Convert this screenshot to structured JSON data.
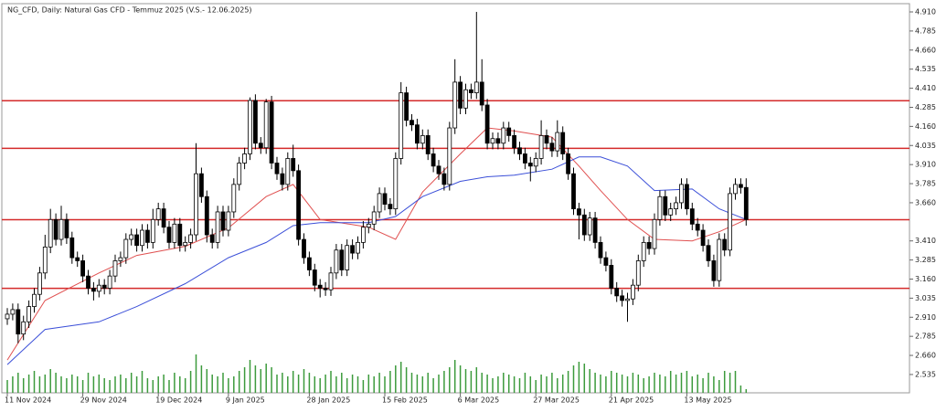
{
  "chart_data": {
    "type": "candlestick",
    "title": "NG_CFD, Daily:  Natural Gas CFD - Temmuz 2025 (V.S.- 12.06.2025)",
    "categories": [
      "11 Nov 2024",
      null,
      null,
      null,
      null,
      null,
      null,
      null,
      null,
      null,
      null,
      null,
      null,
      null,
      "29 Nov 2024",
      null,
      null,
      null,
      null,
      null,
      null,
      null,
      null,
      null,
      null,
      null,
      null,
      null,
      "19 Dec 2024",
      null,
      null,
      null,
      null,
      null,
      null,
      null,
      null,
      null,
      null,
      null,
      null,
      "9 Jan 2025",
      null,
      null,
      null,
      null,
      null,
      null,
      null,
      null,
      null,
      null,
      null,
      null,
      null,
      null,
      "28 Jan 2025",
      null,
      null,
      null,
      null,
      null,
      null,
      null,
      null,
      null,
      null,
      null,
      null,
      null,
      "15 Feb 2025",
      null,
      null,
      null,
      null,
      null,
      null,
      null,
      null,
      null,
      null,
      null,
      null,
      null,
      "6 Mar 2025",
      null,
      null,
      null,
      null,
      null,
      null,
      null,
      null,
      null,
      null,
      null,
      null,
      null,
      "27 Mar 2025",
      null,
      null,
      null,
      null,
      null,
      null,
      null,
      null,
      null,
      null,
      null,
      null,
      null,
      "21 Apr 2025",
      null,
      null,
      null,
      null,
      null,
      null,
      null,
      null,
      null,
      null,
      null,
      null,
      null,
      "13 May 2025",
      null,
      null,
      null,
      null,
      null,
      null,
      null,
      null,
      null,
      null,
      null
    ],
    "open": [
      2.9,
      2.93,
      2.96,
      2.8,
      2.88,
      2.98,
      3.06,
      3.2,
      3.37,
      3.55,
      3.42,
      3.55,
      3.43,
      3.3,
      3.28,
      3.18,
      3.1,
      3.08,
      3.12,
      3.1,
      3.18,
      3.28,
      3.3,
      3.42,
      3.45,
      3.38,
      3.48,
      3.4,
      3.55,
      3.62,
      3.5,
      3.4,
      3.52,
      3.38,
      3.4,
      3.45,
      3.85,
      3.7,
      3.45,
      3.4,
      3.6,
      3.48,
      3.6,
      3.78,
      3.92,
      3.98,
      4.33,
      4.05,
      4.02,
      4.32,
      3.92,
      3.85,
      3.78,
      3.95,
      3.87,
      3.42,
      3.3,
      3.22,
      3.12,
      3.1,
      3.09,
      3.2,
      3.35,
      3.22,
      3.38,
      3.33,
      3.4,
      3.5,
      3.52,
      3.6,
      3.72,
      3.65,
      3.62,
      3.95,
      4.38,
      4.2,
      4.17,
      4.05,
      4.1,
      3.98,
      3.9,
      3.85,
      3.78,
      4.15,
      4.45,
      4.28,
      4.4,
      4.38,
      4.45,
      4.3,
      4.05,
      4.08,
      4.05,
      4.15,
      4.1,
      4.02,
      3.98,
      3.92,
      3.9,
      3.95,
      4.1,
      4.05,
      4.0,
      4.12,
      3.98,
      3.85,
      3.62,
      3.58,
      3.45,
      3.56,
      3.4,
      3.3,
      3.25,
      3.1,
      3.05,
      3.02,
      3.03,
      3.12,
      3.28,
      3.4,
      3.36,
      3.55,
      3.7,
      3.58,
      3.62,
      3.66,
      3.78,
      3.62,
      3.52,
      3.48,
      3.38,
      3.28,
      3.15,
      3.42,
      3.35,
      3.72,
      3.78,
      3.76
    ],
    "high": [
      2.97,
      3.0,
      3.0,
      2.92,
      3.02,
      3.1,
      3.24,
      3.45,
      3.62,
      3.59,
      3.64,
      3.59,
      3.47,
      3.34,
      3.32,
      3.22,
      3.14,
      3.16,
      3.16,
      3.22,
      3.32,
      3.34,
      3.46,
      3.49,
      3.49,
      3.52,
      3.52,
      3.62,
      3.66,
      3.66,
      3.54,
      3.56,
      3.56,
      3.44,
      3.49,
      4.05,
      3.89,
      3.74,
      3.49,
      3.64,
      3.64,
      3.64,
      3.82,
      3.96,
      4.02,
      4.35,
      4.37,
      4.09,
      4.34,
      4.36,
      3.96,
      3.89,
      3.99,
      4.04,
      3.91,
      3.46,
      3.34,
      3.26,
      3.16,
      3.14,
      3.24,
      3.39,
      3.39,
      3.42,
      3.42,
      3.44,
      3.54,
      3.56,
      3.64,
      3.76,
      3.76,
      3.69,
      3.99,
      4.45,
      4.42,
      4.24,
      4.21,
      4.14,
      4.14,
      4.02,
      3.94,
      3.89,
      4.19,
      4.6,
      4.49,
      4.44,
      4.44,
      4.91,
      4.6,
      4.34,
      4.12,
      4.12,
      4.19,
      4.19,
      4.14,
      4.06,
      4.02,
      3.96,
      3.99,
      4.2,
      4.14,
      4.09,
      4.2,
      4.16,
      4.02,
      3.89,
      3.66,
      3.62,
      3.6,
      3.6,
      3.44,
      3.34,
      3.29,
      3.14,
      3.09,
      3.07,
      3.16,
      3.32,
      3.44,
      3.44,
      3.59,
      3.74,
      3.74,
      3.66,
      3.7,
      3.82,
      3.82,
      3.66,
      3.56,
      3.52,
      3.42,
      3.32,
      3.46,
      3.46,
      3.76,
      3.82,
      3.82,
      3.82
    ],
    "low": [
      2.86,
      2.89,
      2.74,
      2.76,
      2.84,
      2.94,
      3.02,
      3.16,
      3.33,
      3.38,
      3.38,
      3.39,
      3.26,
      3.24,
      3.14,
      3.06,
      3.02,
      3.04,
      3.06,
      3.06,
      3.14,
      3.24,
      3.26,
      3.38,
      3.34,
      3.34,
      3.36,
      3.36,
      3.51,
      3.46,
      3.36,
      3.36,
      3.34,
      3.34,
      3.36,
      3.41,
      3.66,
      3.4,
      3.36,
      3.36,
      3.44,
      3.44,
      3.56,
      3.74,
      3.88,
      3.94,
      4.01,
      3.98,
      3.98,
      3.88,
      3.81,
      3.74,
      3.74,
      3.83,
      3.38,
      3.26,
      3.18,
      3.08,
      3.04,
      3.05,
      3.05,
      3.16,
      3.18,
      3.18,
      3.29,
      3.29,
      3.36,
      3.46,
      3.48,
      3.56,
      3.61,
      3.58,
      3.58,
      3.91,
      4.16,
      4.13,
      4.01,
      4.01,
      3.94,
      3.86,
      3.81,
      3.74,
      3.74,
      4.11,
      4.24,
      4.24,
      4.34,
      4.34,
      4.26,
      4.01,
      4.01,
      4.01,
      4.01,
      4.06,
      3.98,
      3.94,
      3.88,
      3.8,
      3.86,
      3.91,
      4.01,
      3.96,
      3.96,
      3.94,
      3.81,
      3.58,
      3.42,
      3.41,
      3.41,
      3.36,
      3.26,
      3.21,
      3.06,
      3.01,
      2.98,
      2.88,
      2.99,
      3.08,
      3.24,
      3.32,
      3.32,
      3.51,
      3.54,
      3.54,
      3.58,
      3.62,
      3.58,
      3.48,
      3.44,
      3.34,
      3.24,
      3.11,
      3.11,
      3.31,
      3.31,
      3.68,
      3.72,
      3.51
    ],
    "close": [
      2.93,
      2.96,
      2.8,
      2.88,
      2.98,
      3.06,
      3.2,
      3.37,
      3.55,
      3.42,
      3.55,
      3.43,
      3.3,
      3.28,
      3.18,
      3.1,
      3.08,
      3.12,
      3.1,
      3.18,
      3.28,
      3.3,
      3.42,
      3.45,
      3.38,
      3.48,
      3.4,
      3.55,
      3.62,
      3.5,
      3.4,
      3.52,
      3.38,
      3.4,
      3.45,
      3.85,
      3.7,
      3.45,
      3.4,
      3.6,
      3.48,
      3.6,
      3.78,
      3.92,
      3.98,
      4.33,
      4.05,
      4.02,
      4.32,
      3.92,
      3.85,
      3.78,
      3.95,
      3.87,
      3.42,
      3.3,
      3.22,
      3.12,
      3.1,
      3.09,
      3.2,
      3.35,
      3.22,
      3.38,
      3.33,
      3.4,
      3.5,
      3.52,
      3.6,
      3.72,
      3.65,
      3.62,
      3.95,
      4.38,
      4.2,
      4.17,
      4.05,
      4.1,
      3.98,
      3.9,
      3.85,
      3.78,
      4.15,
      4.45,
      4.28,
      4.4,
      4.38,
      4.45,
      4.3,
      4.05,
      4.08,
      4.05,
      4.15,
      4.1,
      4.02,
      3.98,
      3.92,
      3.9,
      3.95,
      4.1,
      4.05,
      4.0,
      4.12,
      3.98,
      3.85,
      3.62,
      3.58,
      3.45,
      3.56,
      3.4,
      3.3,
      3.25,
      3.1,
      3.05,
      3.02,
      3.03,
      3.12,
      3.28,
      3.4,
      3.36,
      3.55,
      3.7,
      3.58,
      3.62,
      3.66,
      3.78,
      3.62,
      3.52,
      3.48,
      3.38,
      3.28,
      3.15,
      3.42,
      3.35,
      3.72,
      3.78,
      3.76,
      3.55
    ],
    "volume": [
      14,
      18,
      22,
      16,
      20,
      24,
      18,
      20,
      26,
      22,
      18,
      16,
      20,
      18,
      14,
      22,
      18,
      20,
      16,
      14,
      18,
      20,
      16,
      22,
      18,
      24,
      16,
      14,
      18,
      20,
      14,
      22,
      18,
      16,
      24,
      42,
      30,
      26,
      20,
      18,
      22,
      16,
      18,
      24,
      28,
      36,
      30,
      26,
      32,
      28,
      20,
      22,
      18,
      24,
      20,
      26,
      22,
      18,
      16,
      20,
      24,
      18,
      22,
      16,
      20,
      18,
      14,
      20,
      18,
      22,
      18,
      24,
      30,
      34,
      28,
      22,
      20,
      18,
      22,
      16,
      20,
      24,
      28,
      36,
      30,
      26,
      24,
      28,
      22,
      20,
      16,
      18,
      22,
      20,
      18,
      16,
      22,
      18,
      14,
      20,
      18,
      22,
      16,
      20,
      24,
      30,
      34,
      32,
      26,
      22,
      20,
      18,
      24,
      22,
      20,
      18,
      22,
      20,
      16,
      18,
      22,
      20,
      18,
      24,
      20,
      22,
      24,
      18,
      20,
      16,
      22,
      18,
      14,
      24,
      22,
      24,
      8,
      4
    ],
    "vlim": [
      0,
      100
    ],
    "up_color": "#ffffff",
    "down_color": "#000000",
    "volume_color": "#3c9a3c",
    "moving_averages": [
      {
        "color": "#e05050",
        "x": [
          0,
          7,
          17,
          24,
          33,
          41,
          48,
          53,
          58,
          67,
          72,
          77,
          84,
          89,
          94,
          101,
          106,
          110,
          115,
          120,
          127,
          132,
          137
        ],
        "values": [
          2.63,
          3.02,
          3.2,
          3.315,
          3.375,
          3.495,
          3.7,
          3.78,
          3.55,
          3.5,
          3.42,
          3.73,
          3.98,
          4.15,
          4.13,
          4.09,
          3.9,
          3.74,
          3.55,
          3.42,
          3.41,
          3.47,
          3.55
        ]
      },
      {
        "color": "#3b4fd8",
        "x": [
          0,
          7,
          17,
          24,
          33,
          41,
          48,
          53,
          58,
          67,
          72,
          77,
          84,
          89,
          94,
          101,
          106,
          110,
          115,
          120,
          127,
          132,
          137
        ],
        "values": [
          2.6,
          2.83,
          2.88,
          2.98,
          3.13,
          3.3,
          3.4,
          3.51,
          3.53,
          3.53,
          3.57,
          3.7,
          3.8,
          3.83,
          3.84,
          3.88,
          3.96,
          3.96,
          3.9,
          3.74,
          3.75,
          3.62,
          3.55
        ]
      }
    ],
    "levels": [
      4.328,
      4.016,
      3.549,
      3.099
    ],
    "level_color": "#d42a2a",
    "ylim": [
      2.415,
      4.964
    ],
    "yticks": [
      {
        "value": 4.91,
        "label": "4.910"
      },
      {
        "value": 4.785,
        "label": "4.785"
      },
      {
        "value": 4.66,
        "label": "4.660"
      },
      {
        "value": 4.535,
        "label": "4.535"
      },
      {
        "value": 4.41,
        "label": "4.410"
      },
      {
        "value": 4.285,
        "label": "4.285"
      },
      {
        "value": 4.16,
        "label": "4.160"
      },
      {
        "value": 4.035,
        "label": "4.035"
      },
      {
        "value": 3.91,
        "label": "3.910"
      },
      {
        "value": 3.785,
        "label": "3.785"
      },
      {
        "value": 3.66,
        "label": "3.660"
      },
      {
        "value": 3.41,
        "label": "3.410"
      },
      {
        "value": 3.285,
        "label": "3.285"
      },
      {
        "value": 3.16,
        "label": "3.160"
      },
      {
        "value": 3.035,
        "label": "3.035"
      },
      {
        "value": 2.91,
        "label": "2.910"
      },
      {
        "value": 2.785,
        "label": "2.785"
      },
      {
        "value": 2.66,
        "label": "2.660"
      },
      {
        "value": 2.535,
        "label": "2.535"
      }
    ]
  }
}
